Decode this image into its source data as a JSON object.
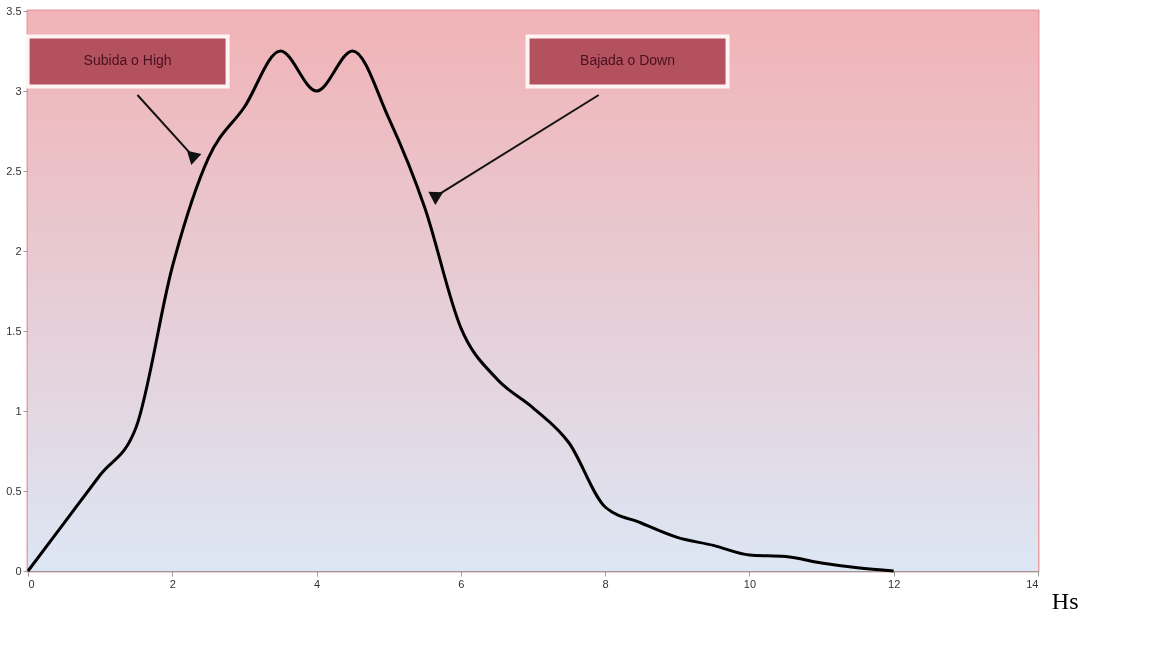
{
  "chart_data": {
    "type": "line",
    "xlabel": "Hs",
    "x": [
      0,
      1,
      1.5,
      2,
      2.5,
      3,
      3.5,
      4,
      4.5,
      5,
      5.5,
      6,
      6.5,
      7,
      7.5,
      8,
      8.5,
      9,
      9.5,
      10,
      10.5,
      11,
      11.5,
      12
    ],
    "series": [
      {
        "color": "#000000",
        "values": [
          0,
          0.6,
          0.9,
          1.9,
          2.58,
          2.9,
          3.25,
          3.0,
          3.25,
          2.83,
          2.27,
          1.52,
          1.2,
          1.02,
          0.8,
          0.4,
          0.3,
          0.21,
          0.16,
          0.1,
          0.09,
          0.05,
          0.02,
          0
        ]
      }
    ],
    "xlim": [
      0,
      14
    ],
    "xticks": [
      0,
      2,
      4,
      6,
      8,
      10,
      12,
      14
    ],
    "ylim": [
      0,
      3.5
    ],
    "yticks": [
      0,
      0.5,
      1,
      1.5,
      2,
      2.5,
      3,
      3.5
    ],
    "grid": "y",
    "marker": "none",
    "line_style": "solid",
    "annotations": [
      "Subida o High",
      "Bajada o Down"
    ]
  }
}
